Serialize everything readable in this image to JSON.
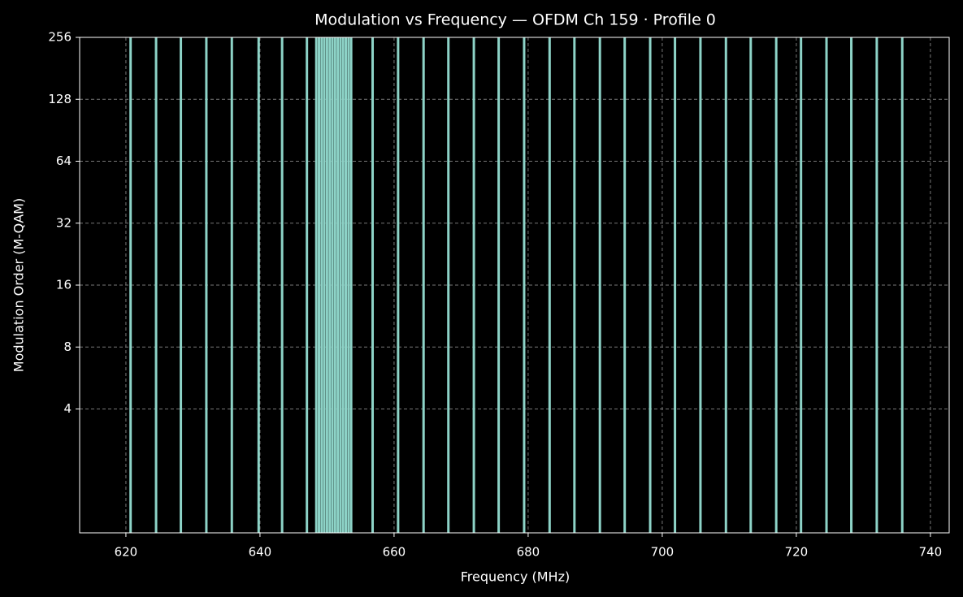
{
  "chart_data": {
    "type": "stem",
    "title": "Modulation vs Frequency — OFDM Ch 159 · Profile 0",
    "xlabel": "Frequency (MHz)",
    "ylabel": "Modulation Order (M-QAM)",
    "x": [
      620.7,
      624.5,
      628.2,
      632.0,
      635.8,
      639.8,
      643.3,
      647.0,
      648.4,
      648.8,
      649.2,
      649.6,
      650.0,
      650.4,
      650.8,
      651.2,
      651.6,
      652.0,
      652.4,
      652.8,
      653.2,
      653.6,
      656.8,
      660.6,
      664.4,
      668.1,
      671.9,
      675.6,
      679.4,
      683.2,
      686.9,
      690.7,
      694.4,
      698.2,
      701.9,
      705.7,
      709.5,
      713.2,
      717.0,
      720.7,
      724.5,
      728.2,
      732.0,
      735.8
    ],
    "values": [
      256,
      256,
      256,
      256,
      256,
      256,
      256,
      256,
      256,
      256,
      256,
      256,
      256,
      256,
      256,
      256,
      256,
      256,
      256,
      256,
      256,
      256,
      256,
      256,
      256,
      256,
      256,
      256,
      256,
      256,
      256,
      256,
      256,
      256,
      256,
      256,
      256,
      256,
      256,
      256,
      256,
      256,
      256,
      256
    ],
    "color": "#8dd3c7",
    "xlim": [
      613.1,
      742.8
    ],
    "xticks": [
      620,
      640,
      660,
      680,
      700,
      720,
      740
    ],
    "ylim": [
      1,
      256
    ],
    "yticks": [
      4,
      8,
      16,
      32,
      64,
      128,
      256
    ],
    "yscale": "log",
    "log_base": 2,
    "grid": true
  }
}
